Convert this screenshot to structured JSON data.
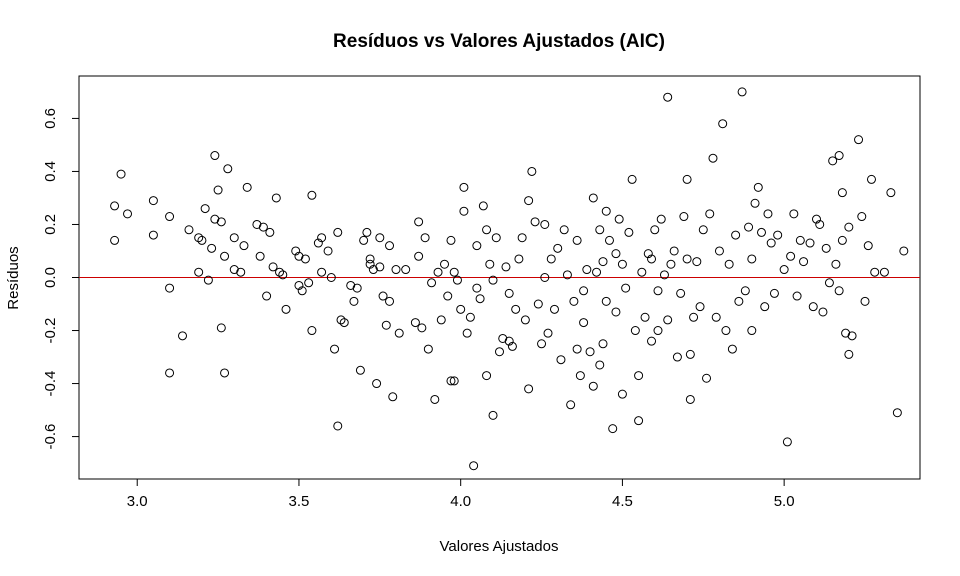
{
  "chart_data": {
    "type": "scatter",
    "title": "Resíduos vs Valores Ajustados (AIC)",
    "xlabel": "Valores Ajustados",
    "ylabel": "Resíduos",
    "xlim": [
      2.82,
      5.42
    ],
    "ylim": [
      -0.76,
      0.76
    ],
    "x_ticks": [
      3.0,
      3.5,
      4.0,
      4.5,
      5.0
    ],
    "x_tick_labels": [
      "3.0",
      "3.5",
      "4.0",
      "4.5",
      "5.0"
    ],
    "y_ticks": [
      -0.6,
      -0.4,
      -0.2,
      0.0,
      0.2,
      0.4,
      0.6
    ],
    "y_tick_labels": [
      "-0.6",
      "-0.4",
      "-0.2",
      "0.0",
      "0.2",
      "0.4",
      "0.6"
    ],
    "reference_line": {
      "y": 0.0,
      "color": "#cc0000"
    },
    "marker": "open-circle",
    "grid": false,
    "series": [
      {
        "points": [
          [
            2.93,
            0.27
          ],
          [
            2.95,
            0.39
          ],
          [
            2.97,
            0.24
          ],
          [
            2.93,
            0.14
          ],
          [
            3.05,
            0.29
          ],
          [
            3.05,
            0.16
          ],
          [
            3.1,
            0.23
          ],
          [
            3.1,
            -0.04
          ],
          [
            3.1,
            -0.36
          ],
          [
            3.14,
            -0.22
          ],
          [
            3.16,
            0.18
          ],
          [
            3.19,
            0.15
          ],
          [
            3.19,
            0.02
          ],
          [
            3.2,
            0.14
          ],
          [
            3.21,
            0.26
          ],
          [
            3.22,
            -0.01
          ],
          [
            3.23,
            0.11
          ],
          [
            3.24,
            0.46
          ],
          [
            3.24,
            0.22
          ],
          [
            3.25,
            0.33
          ],
          [
            3.26,
            0.21
          ],
          [
            3.26,
            -0.19
          ],
          [
            3.27,
            0.08
          ],
          [
            3.27,
            -0.36
          ],
          [
            3.28,
            0.41
          ],
          [
            3.3,
            0.15
          ],
          [
            3.3,
            0.03
          ],
          [
            3.32,
            0.02
          ],
          [
            3.33,
            0.12
          ],
          [
            3.34,
            0.34
          ],
          [
            3.37,
            0.2
          ],
          [
            3.38,
            0.08
          ],
          [
            3.39,
            0.19
          ],
          [
            3.4,
            -0.07
          ],
          [
            3.41,
            0.17
          ],
          [
            3.42,
            0.04
          ],
          [
            3.43,
            0.3
          ],
          [
            3.44,
            0.02
          ],
          [
            3.45,
            0.01
          ],
          [
            3.46,
            -0.12
          ],
          [
            3.49,
            0.1
          ],
          [
            3.5,
            0.08
          ],
          [
            3.5,
            -0.03
          ],
          [
            3.51,
            -0.05
          ],
          [
            3.52,
            0.07
          ],
          [
            3.53,
            -0.02
          ],
          [
            3.54,
            0.31
          ],
          [
            3.54,
            -0.2
          ],
          [
            3.56,
            0.13
          ],
          [
            3.57,
            0.15
          ],
          [
            3.57,
            0.02
          ],
          [
            3.59,
            0.1
          ],
          [
            3.6,
            0.0
          ],
          [
            3.61,
            -0.27
          ],
          [
            3.62,
            0.17
          ],
          [
            3.62,
            -0.56
          ],
          [
            3.63,
            -0.16
          ],
          [
            3.64,
            -0.17
          ],
          [
            3.66,
            -0.03
          ],
          [
            3.67,
            -0.09
          ],
          [
            3.68,
            -0.04
          ],
          [
            3.69,
            -0.35
          ],
          [
            3.7,
            0.14
          ],
          [
            3.71,
            0.17
          ],
          [
            3.72,
            0.07
          ],
          [
            3.73,
            0.03
          ],
          [
            3.74,
            -0.4
          ],
          [
            3.75,
            0.15
          ],
          [
            3.75,
            0.04
          ],
          [
            3.76,
            -0.07
          ],
          [
            3.77,
            -0.18
          ],
          [
            3.78,
            0.12
          ],
          [
            3.78,
            -0.09
          ],
          [
            3.79,
            -0.45
          ],
          [
            3.8,
            0.03
          ],
          [
            3.81,
            -0.21
          ],
          [
            3.83,
            0.03
          ],
          [
            3.86,
            -0.17
          ],
          [
            3.87,
            0.21
          ],
          [
            3.87,
            0.08
          ],
          [
            3.88,
            -0.19
          ],
          [
            3.89,
            0.15
          ],
          [
            3.9,
            -0.27
          ],
          [
            3.91,
            -0.02
          ],
          [
            3.92,
            -0.46
          ],
          [
            3.93,
            0.02
          ],
          [
            3.94,
            -0.16
          ],
          [
            3.95,
            0.05
          ],
          [
            3.96,
            -0.07
          ],
          [
            3.97,
            0.14
          ],
          [
            3.97,
            -0.39
          ],
          [
            3.98,
            0.02
          ],
          [
            3.99,
            -0.01
          ],
          [
            4.0,
            -0.12
          ],
          [
            4.01,
            0.34
          ],
          [
            4.01,
            0.25
          ],
          [
            4.02,
            -0.21
          ],
          [
            4.03,
            -0.15
          ],
          [
            4.04,
            -0.71
          ],
          [
            4.05,
            0.12
          ],
          [
            4.05,
            -0.04
          ],
          [
            4.06,
            -0.08
          ],
          [
            4.07,
            0.27
          ],
          [
            4.08,
            0.18
          ],
          [
            4.08,
            -0.37
          ],
          [
            4.09,
            0.05
          ],
          [
            4.1,
            -0.01
          ],
          [
            4.1,
            -0.52
          ],
          [
            4.11,
            0.15
          ],
          [
            4.12,
            -0.28
          ],
          [
            4.13,
            -0.23
          ],
          [
            4.14,
            0.04
          ],
          [
            4.15,
            -0.06
          ],
          [
            4.16,
            -0.26
          ],
          [
            4.17,
            -0.12
          ],
          [
            4.18,
            0.07
          ],
          [
            4.19,
            0.15
          ],
          [
            4.2,
            -0.16
          ],
          [
            4.21,
            0.29
          ],
          [
            4.21,
            -0.42
          ],
          [
            4.22,
            0.4
          ],
          [
            4.23,
            0.21
          ],
          [
            4.24,
            -0.1
          ],
          [
            4.25,
            -0.25
          ],
          [
            4.26,
            0.0
          ],
          [
            4.27,
            -0.21
          ],
          [
            4.28,
            0.07
          ],
          [
            4.29,
            -0.12
          ],
          [
            4.3,
            0.11
          ],
          [
            4.31,
            -0.31
          ],
          [
            4.32,
            0.18
          ],
          [
            4.33,
            0.01
          ],
          [
            4.34,
            -0.48
          ],
          [
            4.35,
            -0.09
          ],
          [
            4.36,
            0.14
          ],
          [
            4.36,
            -0.27
          ],
          [
            4.37,
            -0.37
          ],
          [
            4.38,
            -0.17
          ],
          [
            4.39,
            0.03
          ],
          [
            4.4,
            -0.28
          ],
          [
            4.41,
            0.3
          ],
          [
            4.41,
            -0.41
          ],
          [
            4.42,
            0.02
          ],
          [
            4.43,
            0.18
          ],
          [
            4.43,
            -0.33
          ],
          [
            4.44,
            0.06
          ],
          [
            4.45,
            0.25
          ],
          [
            4.45,
            -0.09
          ],
          [
            4.46,
            0.14
          ],
          [
            4.47,
            -0.57
          ],
          [
            4.48,
            0.09
          ],
          [
            4.48,
            -0.13
          ],
          [
            4.49,
            0.22
          ],
          [
            4.5,
            0.05
          ],
          [
            4.5,
            -0.44
          ],
          [
            4.51,
            -0.04
          ],
          [
            4.52,
            0.17
          ],
          [
            4.53,
            0.37
          ],
          [
            4.54,
            -0.2
          ],
          [
            4.55,
            -0.54
          ],
          [
            4.55,
            -0.37
          ],
          [
            4.56,
            0.02
          ],
          [
            4.57,
            -0.15
          ],
          [
            4.58,
            0.09
          ],
          [
            4.59,
            -0.24
          ],
          [
            4.6,
            0.18
          ],
          [
            4.61,
            -0.05
          ],
          [
            4.62,
            0.22
          ],
          [
            4.63,
            0.01
          ],
          [
            4.64,
            0.68
          ],
          [
            4.64,
            -0.16
          ],
          [
            4.65,
            0.05
          ],
          [
            4.66,
            0.1
          ],
          [
            4.67,
            -0.3
          ],
          [
            4.68,
            -0.06
          ],
          [
            4.69,
            0.23
          ],
          [
            4.7,
            0.37
          ],
          [
            4.71,
            -0.29
          ],
          [
            4.71,
            -0.46
          ],
          [
            4.72,
            -0.15
          ],
          [
            4.73,
            0.06
          ],
          [
            4.74,
            -0.11
          ],
          [
            4.75,
            0.18
          ],
          [
            4.76,
            -0.38
          ],
          [
            4.77,
            0.24
          ],
          [
            4.78,
            0.45
          ],
          [
            4.79,
            -0.15
          ],
          [
            4.8,
            0.1
          ],
          [
            4.81,
            0.58
          ],
          [
            4.82,
            -0.2
          ],
          [
            4.83,
            0.05
          ],
          [
            4.84,
            -0.27
          ],
          [
            4.85,
            0.16
          ],
          [
            4.86,
            -0.09
          ],
          [
            4.87,
            0.7
          ],
          [
            4.88,
            -0.05
          ],
          [
            4.89,
            0.19
          ],
          [
            4.9,
            -0.2
          ],
          [
            4.91,
            0.28
          ],
          [
            4.92,
            0.34
          ],
          [
            4.93,
            0.17
          ],
          [
            4.94,
            -0.11
          ],
          [
            4.95,
            0.24
          ],
          [
            4.96,
            0.13
          ],
          [
            4.97,
            -0.06
          ],
          [
            4.98,
            0.16
          ],
          [
            5.0,
            0.03
          ],
          [
            5.01,
            -0.62
          ],
          [
            5.02,
            0.08
          ],
          [
            5.03,
            0.24
          ],
          [
            5.04,
            -0.07
          ],
          [
            5.05,
            0.14
          ],
          [
            5.06,
            0.06
          ],
          [
            5.08,
            0.13
          ],
          [
            5.09,
            -0.11
          ],
          [
            5.1,
            0.22
          ],
          [
            5.11,
            0.2
          ],
          [
            5.12,
            -0.13
          ],
          [
            5.13,
            0.11
          ],
          [
            5.14,
            -0.02
          ],
          [
            5.15,
            0.44
          ],
          [
            5.16,
            0.05
          ],
          [
            5.17,
            0.46
          ],
          [
            5.17,
            -0.05
          ],
          [
            5.18,
            0.32
          ],
          [
            5.18,
            0.14
          ],
          [
            5.19,
            -0.21
          ],
          [
            5.2,
            0.19
          ],
          [
            5.21,
            -0.22
          ],
          [
            5.23,
            0.52
          ],
          [
            5.24,
            0.23
          ],
          [
            5.25,
            -0.09
          ],
          [
            5.26,
            0.12
          ],
          [
            5.27,
            0.37
          ],
          [
            5.28,
            0.02
          ],
          [
            5.31,
            0.02
          ],
          [
            5.33,
            0.32
          ],
          [
            5.35,
            -0.51
          ],
          [
            5.37,
            0.1
          ],
          [
            5.2,
            -0.29
          ],
          [
            4.61,
            -0.2
          ],
          [
            4.59,
            0.07
          ],
          [
            4.38,
            -0.05
          ],
          [
            4.15,
            -0.24
          ],
          [
            3.98,
            -0.39
          ],
          [
            4.44,
            -0.25
          ],
          [
            4.7,
            0.07
          ],
          [
            4.9,
            0.07
          ],
          [
            3.72,
            0.05
          ],
          [
            4.26,
            0.2
          ]
        ]
      }
    ]
  }
}
